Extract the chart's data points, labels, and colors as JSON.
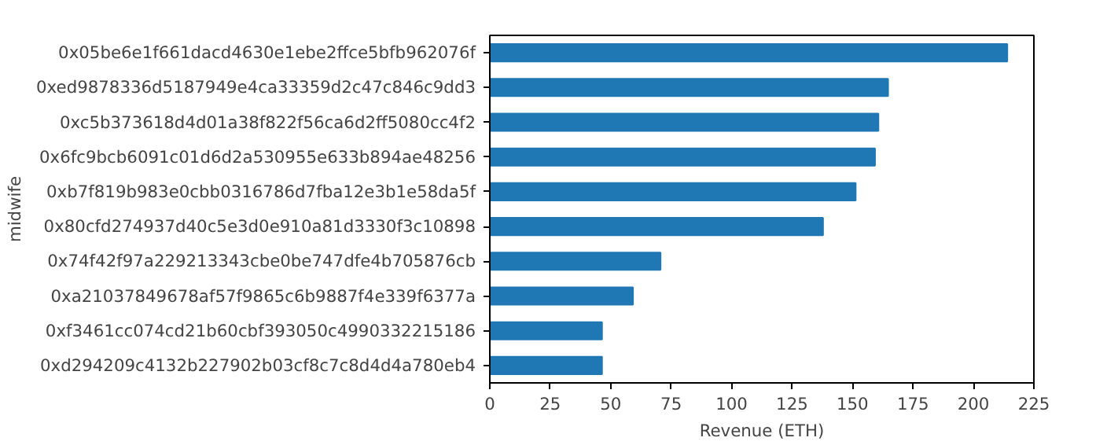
{
  "chart_data": {
    "type": "bar",
    "orientation": "horizontal",
    "xlabel": "Revenue (ETH)",
    "ylabel": "midwife",
    "categories": [
      "0x05be6e1f661dacd4630e1ebe2ffce5bfb962076f",
      "0xed9878336d5187949e4ca33359d2c47c846c9dd3",
      "0xc5b373618d4d01a38f822f56ca6d2ff5080cc4f2",
      "0x6fc9bcb6091c01d6d2a530955e633b894ae48256",
      "0xb7f819b983e0cbb0316786d7fba12e3b1e58da5f",
      "0x80cfd274937d40c5e3d0e910a81d3330f3c10898",
      "0x74f42f97a229213343cbe0be747dfe4b705876cb",
      "0xa21037849678af57f9865c6b9887f4e339f6377a",
      "0xf3461cc074cd21b60cbf393050c4990332215186",
      "0xd294209c4132b227902b03cf8c7c8d4d4a780eb4"
    ],
    "values": [
      214,
      164.7,
      160.7,
      159.3,
      151.3,
      137.8,
      70.6,
      59.2,
      46.4,
      46.4
    ],
    "color": "#1f77b4",
    "xlim": [
      0,
      225
    ],
    "xticks": [
      0,
      25,
      50,
      75,
      100,
      125,
      150,
      175,
      200,
      225
    ],
    "grid": false
  }
}
